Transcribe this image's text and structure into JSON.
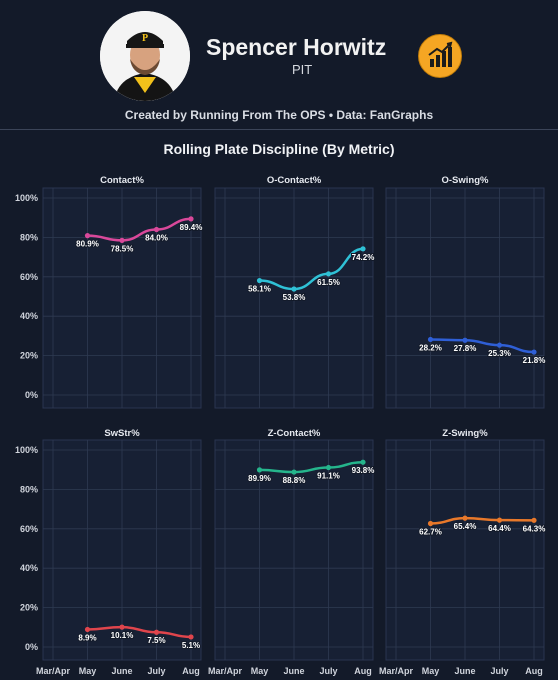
{
  "header": {
    "player_name": "Spencer Horwitz",
    "team": "PIT",
    "credit": "Created by Running From The OPS • Data: FanGraphs"
  },
  "colors": {
    "background": "#131a29",
    "panel": "#172034",
    "grid": "#2f3a52",
    "contact": "#d9489a",
    "o_contact": "#2fc1d6",
    "o_swing": "#2f5fd6",
    "swstr": "#e0454c",
    "z_contact": "#25b58c",
    "z_swing": "#e8782a"
  },
  "chart_data": {
    "type": "line",
    "title": "Rolling Plate Discipline (By Metric)",
    "categories": [
      "Mar/Apr",
      "May",
      "June",
      "July",
      "Aug"
    ],
    "ylim": [
      0,
      100
    ],
    "yticks": [
      "0%",
      "20%",
      "40%",
      "60%",
      "80%",
      "100%"
    ],
    "grid": true,
    "panels": [
      {
        "name": "Contact%",
        "color_key": "contact",
        "values": [
          null,
          80.9,
          78.5,
          84.0,
          89.4
        ],
        "labels": [
          "",
          "80.9%",
          "78.5%",
          "84.0%",
          "89.4%"
        ]
      },
      {
        "name": "O-Contact%",
        "color_key": "o_contact",
        "values": [
          null,
          58.1,
          53.8,
          61.5,
          74.2
        ],
        "labels": [
          "",
          "58.1%",
          "53.8%",
          "61.5%",
          "74.2%"
        ]
      },
      {
        "name": "O-Swing%",
        "color_key": "o_swing",
        "values": [
          null,
          28.2,
          27.8,
          25.3,
          21.8
        ],
        "labels": [
          "",
          "28.2%",
          "27.8%",
          "25.3%",
          "21.8%"
        ]
      },
      {
        "name": "SwStr%",
        "color_key": "swstr",
        "values": [
          null,
          8.9,
          10.1,
          7.5,
          5.1
        ],
        "labels": [
          "",
          "8.9%",
          "10.1%",
          "7.5%",
          "5.1%"
        ]
      },
      {
        "name": "Z-Contact%",
        "color_key": "z_contact",
        "values": [
          null,
          89.9,
          88.8,
          91.1,
          93.8
        ],
        "labels": [
          "",
          "89.9%",
          "88.8%",
          "91.1%",
          "93.8%"
        ]
      },
      {
        "name": "Z-Swing%",
        "color_key": "z_swing",
        "values": [
          null,
          62.7,
          65.4,
          64.4,
          64.3
        ],
        "labels": [
          "",
          "62.7%",
          "65.4%",
          "64.4%",
          "64.3%"
        ]
      }
    ]
  }
}
